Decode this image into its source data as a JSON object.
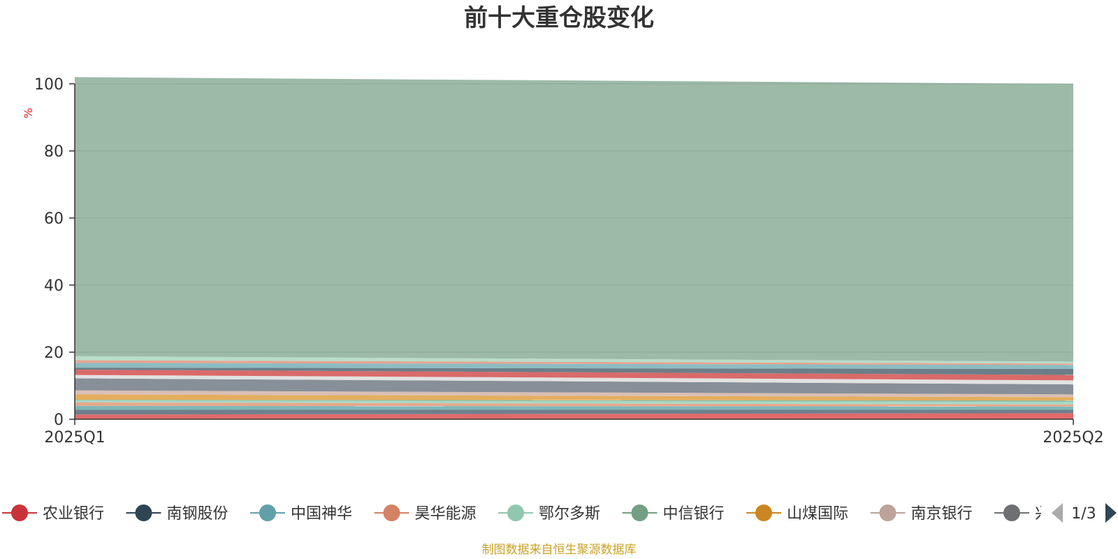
{
  "chart_data": {
    "type": "area",
    "stacked": true,
    "title": "前十大重仓股变化",
    "ylabel": "%",
    "ylim": [
      0,
      100
    ],
    "yticks": [
      "0",
      "20",
      "40",
      "60",
      "80",
      "100"
    ],
    "categories": [
      "2025Q1",
      "2025Q2"
    ],
    "grid": true,
    "series": [
      {
        "name": "农业银行",
        "values": [
          1.4,
          1.8
        ],
        "color": "#e06a6a"
      },
      {
        "name": "南钢股份",
        "values": [
          1.4,
          1.0
        ],
        "color": "#6f7f8c"
      },
      {
        "name": "中国神华",
        "values": [
          1.2,
          1.0
        ],
        "color": "#7fb7b8"
      },
      {
        "name": "昊华能源",
        "values": [
          1.0,
          0.6
        ],
        "color": "#e7a88a"
      },
      {
        "name": "鄂尔多斯",
        "values": [
          0.6,
          0.8
        ],
        "color": "#a8d8c4"
      },
      {
        "name": "中信银行",
        "values": [
          0.2,
          0.4
        ],
        "color": "#8fb9a4"
      },
      {
        "name": "山煤国际",
        "values": [
          1.6,
          1.0
        ],
        "color": "#e4ae5e"
      },
      {
        "name": "南京银行",
        "values": [
          1.2,
          0.8
        ],
        "color": "#d9bfb5"
      },
      {
        "name": "",
        "values": [
          3.6,
          3.0
        ],
        "color": "#878f98"
      },
      {
        "name": "",
        "values": [
          1.0,
          1.2
        ],
        "color": "#e2e2e2"
      },
      {
        "name": "",
        "values": [
          1.6,
          1.6
        ],
        "color": "#d96a6a"
      },
      {
        "name": "",
        "values": [
          0.6,
          1.8
        ],
        "color": "#6c7d87"
      },
      {
        "name": "",
        "values": [
          1.4,
          1.2
        ],
        "color": "#8cbcc2"
      },
      {
        "name": "",
        "values": [
          0.8,
          0.4
        ],
        "color": "#e5a390"
      },
      {
        "name": "",
        "values": [
          1.2,
          0.6
        ],
        "color": "#b9dcc9"
      },
      {
        "name": "",
        "values": [
          83.2,
          82.8
        ],
        "color": "#9dbaa9"
      }
    ],
    "legend": {
      "position": "bottom",
      "page": "1/3",
      "items": [
        {
          "name": "农业银行",
          "color": "#c9343a"
        },
        {
          "name": "南钢股份",
          "color": "#2f4554"
        },
        {
          "name": "中国神华",
          "color": "#61a0a8"
        },
        {
          "name": "昊华能源",
          "color": "#d48265"
        },
        {
          "name": "鄂尔多斯",
          "color": "#91c7ae"
        },
        {
          "name": "中信银行",
          "color": "#749f83"
        },
        {
          "name": "山煤国际",
          "color": "#ca8622"
        },
        {
          "name": "南京银行",
          "color": "#bda29a"
        },
        {
          "name": "兴",
          "color": "#6e7074"
        }
      ]
    },
    "source": "制图数据来自恒生聚源数据库"
  }
}
